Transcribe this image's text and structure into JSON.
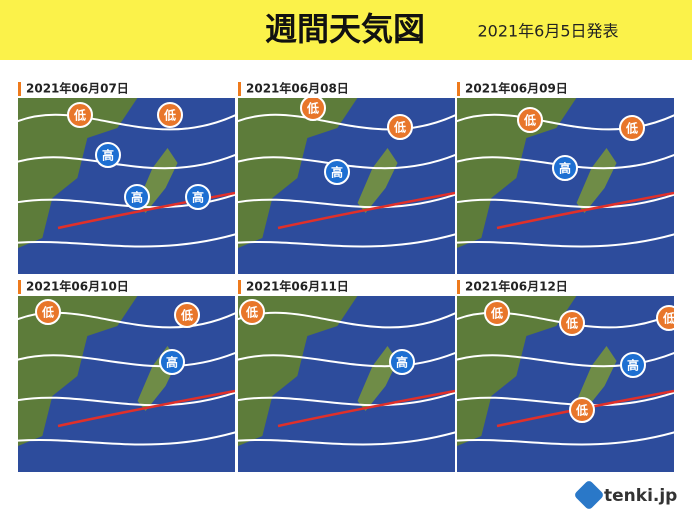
{
  "header": {
    "title": "週間天気図",
    "issued": "2021年6月5日発表"
  },
  "panels": [
    {
      "date": "2021年06月07日",
      "markers": [
        "低",
        "低",
        "高",
        "高",
        "高"
      ]
    },
    {
      "date": "2021年06月08日",
      "markers": [
        "低",
        "低",
        "高"
      ]
    },
    {
      "date": "2021年06月09日",
      "markers": [
        "低",
        "低",
        "高"
      ]
    },
    {
      "date": "2021年06月10日",
      "markers": [
        "低",
        "低",
        "高"
      ]
    },
    {
      "date": "2021年06月11日",
      "markers": [
        "低",
        "高"
      ]
    },
    {
      "date": "2021年06月12日",
      "markers": [
        "低",
        "低",
        "低",
        "高",
        "低"
      ]
    }
  ],
  "footer": {
    "logo": "tenki.jp"
  }
}
